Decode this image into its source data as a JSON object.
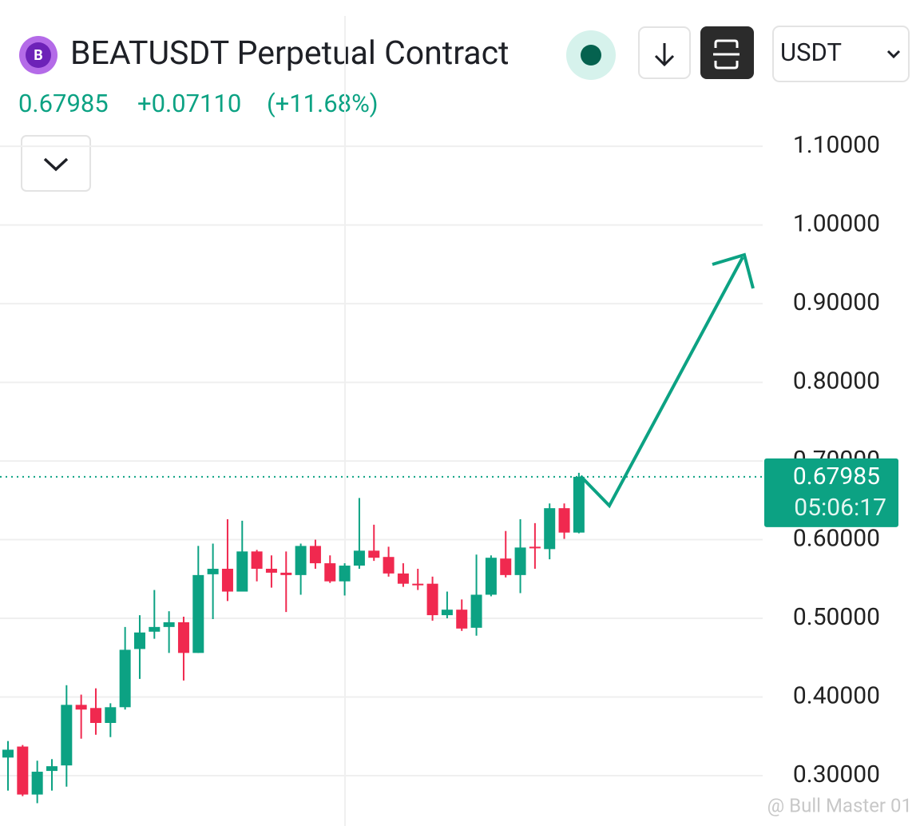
{
  "chart_data": {
    "type": "candlestick",
    "title": "BEATUSDT Perpetual Contract",
    "quote_currency": "USDT",
    "price": 0.67985,
    "change": "+0.07110",
    "change_pct": "(+11.68%)",
    "countdown": "05:06:17",
    "watermark": "@ Bull Master 01",
    "up_color": "#0ca283",
    "down_color": "#f0294f",
    "grid": true,
    "ylim": [
      0.236,
      1.286
    ],
    "yticks": [
      {
        "value": 0.3,
        "label": "0.30000"
      },
      {
        "value": 0.4,
        "label": "0.40000"
      },
      {
        "value": 0.5,
        "label": "0.50000"
      },
      {
        "value": 0.6,
        "label": "0.60000"
      },
      {
        "value": 0.7,
        "label": "0.70000"
      },
      {
        "value": 0.8,
        "label": "0.80000"
      },
      {
        "value": 0.9,
        "label": "0.90000"
      },
      {
        "value": 1.0,
        "label": "1.00000"
      },
      {
        "value": 1.1,
        "label": "1.10000"
      }
    ],
    "open": [
      0.323,
      0.337,
      0.276,
      0.306,
      0.313,
      0.39,
      0.386,
      0.367,
      0.387,
      0.461,
      0.483,
      0.489,
      0.495,
      0.456,
      0.556,
      0.563,
      0.534,
      0.585,
      0.563,
      0.558,
      0.555,
      0.592,
      0.57,
      0.547,
      0.567,
      0.586,
      0.578,
      0.557,
      0.544,
      0.544,
      0.504,
      0.511,
      0.488,
      0.53,
      0.576,
      0.555,
      0.591,
      0.588,
      0.64,
      0.609
    ],
    "high": [
      0.344,
      0.339,
      0.319,
      0.321,
      0.415,
      0.403,
      0.411,
      0.392,
      0.489,
      0.504,
      0.536,
      0.509,
      0.502,
      0.592,
      0.595,
      0.626,
      0.624,
      0.587,
      0.58,
      0.585,
      0.595,
      0.6,
      0.58,
      0.57,
      0.653,
      0.619,
      0.591,
      0.57,
      0.563,
      0.553,
      0.534,
      0.524,
      0.581,
      0.58,
      0.611,
      0.626,
      0.621,
      0.646,
      0.646,
      0.685
    ],
    "low": [
      0.281,
      0.274,
      0.265,
      0.281,
      0.286,
      0.347,
      0.352,
      0.349,
      0.384,
      0.423,
      0.474,
      0.456,
      0.421,
      0.456,
      0.499,
      0.522,
      0.534,
      0.547,
      0.539,
      0.508,
      0.53,
      0.563,
      0.545,
      0.529,
      0.563,
      0.573,
      0.553,
      0.54,
      0.536,
      0.497,
      0.5,
      0.484,
      0.478,
      0.528,
      0.552,
      0.532,
      0.563,
      0.575,
      0.601,
      0.608
    ],
    "close": [
      0.333,
      0.276,
      0.305,
      0.312,
      0.39,
      0.384,
      0.367,
      0.387,
      0.46,
      0.482,
      0.489,
      0.495,
      0.456,
      0.555,
      0.563,
      0.534,
      0.585,
      0.563,
      0.558,
      0.555,
      0.592,
      0.57,
      0.547,
      0.567,
      0.586,
      0.577,
      0.557,
      0.544,
      0.542,
      0.504,
      0.511,
      0.487,
      0.53,
      0.577,
      0.555,
      0.59,
      0.589,
      0.64,
      0.609,
      0.67985
    ]
  }
}
